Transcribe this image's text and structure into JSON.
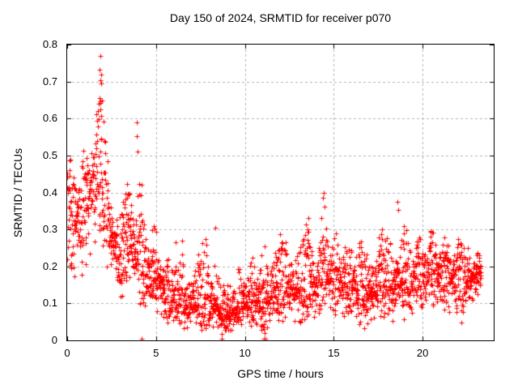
{
  "chart_data": {
    "type": "scatter",
    "title": "Day 150 of 2024, SRMTID for receiver p070",
    "xlabel": "GPS time / hours",
    "ylabel": "SRMTID / TECUs",
    "xlim": [
      0,
      24
    ],
    "ylim": [
      0,
      0.8
    ],
    "xticks": [
      [
        0,
        "0"
      ],
      [
        5,
        "5"
      ],
      [
        10,
        "10"
      ],
      [
        15,
        "15"
      ],
      [
        20,
        "20"
      ]
    ],
    "yticks": [
      [
        0,
        "0"
      ],
      [
        0.1,
        "0.1"
      ],
      [
        0.2,
        "0.2"
      ],
      [
        0.3,
        "0.3"
      ],
      [
        0.4,
        "0.4"
      ],
      [
        0.5,
        "0.5"
      ],
      [
        0.6,
        "0.6"
      ],
      [
        0.7,
        "0.7"
      ],
      [
        0.8,
        "0.8"
      ]
    ],
    "grid": true,
    "legend": "none",
    "marker": "plus-icon",
    "marker_color": "#ff0000",
    "grid_color": "#b3b3b3",
    "border_color": "#000000",
    "background_color": "#ffffff",
    "series_name": "SRMTID",
    "x_start": 0.0,
    "x_end": 23.3,
    "n_points": 2150,
    "seed": 1507,
    "envelope_note": "piecewise [hour, low, median, high] envelope of the dense scatter read from the pixels",
    "envelope": [
      [
        0.0,
        0.15,
        0.33,
        0.5
      ],
      [
        0.5,
        0.17,
        0.32,
        0.48
      ],
      [
        1.0,
        0.2,
        0.36,
        0.52
      ],
      [
        1.5,
        0.25,
        0.42,
        0.62
      ],
      [
        1.8,
        0.27,
        0.44,
        0.72
      ],
      [
        2.1,
        0.22,
        0.38,
        0.58
      ],
      [
        2.5,
        0.15,
        0.28,
        0.44
      ],
      [
        3.0,
        0.12,
        0.22,
        0.36
      ],
      [
        3.6,
        0.12,
        0.26,
        0.46
      ],
      [
        4.0,
        0.1,
        0.23,
        0.48
      ],
      [
        4.5,
        0.08,
        0.18,
        0.33
      ],
      [
        5.0,
        0.08,
        0.17,
        0.3
      ],
      [
        5.5,
        0.05,
        0.12,
        0.24
      ],
      [
        6.0,
        0.04,
        0.1,
        0.26
      ],
      [
        6.5,
        0.03,
        0.09,
        0.23
      ],
      [
        7.0,
        0.04,
        0.1,
        0.2
      ],
      [
        7.5,
        0.03,
        0.1,
        0.26
      ],
      [
        8.3,
        0.03,
        0.1,
        0.3
      ],
      [
        8.8,
        0.012,
        0.06,
        0.16
      ],
      [
        9.3,
        0.03,
        0.08,
        0.18
      ],
      [
        10.0,
        0.04,
        0.1,
        0.21
      ],
      [
        10.7,
        0.04,
        0.11,
        0.23
      ],
      [
        11.2,
        0.02,
        0.11,
        0.26
      ],
      [
        11.8,
        0.05,
        0.13,
        0.28
      ],
      [
        12.3,
        0.06,
        0.15,
        0.3
      ],
      [
        13.0,
        0.04,
        0.13,
        0.27
      ],
      [
        13.6,
        0.06,
        0.16,
        0.33
      ],
      [
        14.1,
        0.06,
        0.14,
        0.28
      ],
      [
        14.5,
        0.08,
        0.18,
        0.38
      ],
      [
        15.0,
        0.08,
        0.16,
        0.3
      ],
      [
        15.6,
        0.06,
        0.15,
        0.28
      ],
      [
        16.2,
        0.05,
        0.14,
        0.3
      ],
      [
        16.7,
        0.03,
        0.12,
        0.25
      ],
      [
        17.3,
        0.06,
        0.15,
        0.3
      ],
      [
        17.9,
        0.06,
        0.15,
        0.3
      ],
      [
        18.4,
        0.04,
        0.14,
        0.32
      ],
      [
        18.7,
        0.05,
        0.17,
        0.36
      ],
      [
        19.2,
        0.06,
        0.16,
        0.28
      ],
      [
        19.8,
        0.08,
        0.17,
        0.29
      ],
      [
        20.4,
        0.09,
        0.18,
        0.3
      ],
      [
        21.0,
        0.08,
        0.17,
        0.27
      ],
      [
        21.6,
        0.07,
        0.17,
        0.29
      ],
      [
        22.1,
        0.06,
        0.15,
        0.27
      ],
      [
        22.6,
        0.08,
        0.17,
        0.28
      ],
      [
        23.3,
        0.1,
        0.18,
        0.26
      ]
    ],
    "outlier_points": [
      [
        1.88,
        0.77
      ],
      [
        1.84,
        0.732
      ],
      [
        1.9,
        0.718
      ],
      [
        1.86,
        0.703
      ],
      [
        1.93,
        0.695
      ],
      [
        1.8,
        0.655
      ],
      [
        1.95,
        0.648
      ],
      [
        1.87,
        0.625
      ],
      [
        1.91,
        0.607
      ],
      [
        1.78,
        0.598
      ],
      [
        3.93,
        0.59
      ],
      [
        3.9,
        0.552
      ],
      [
        3.96,
        0.51
      ],
      [
        6.1,
        0.265
      ],
      [
        6.48,
        0.27
      ],
      [
        8.32,
        0.305
      ],
      [
        13.58,
        0.33
      ],
      [
        14.43,
        0.398
      ],
      [
        14.4,
        0.385
      ],
      [
        14.47,
        0.362
      ],
      [
        18.6,
        0.374
      ],
      [
        18.64,
        0.352
      ],
      [
        20.45,
        0.295
      ],
      [
        4.2,
        0.004
      ],
      [
        8.72,
        0.004
      ],
      [
        11.08,
        0.004
      ],
      [
        11.16,
        0.004
      ]
    ]
  }
}
